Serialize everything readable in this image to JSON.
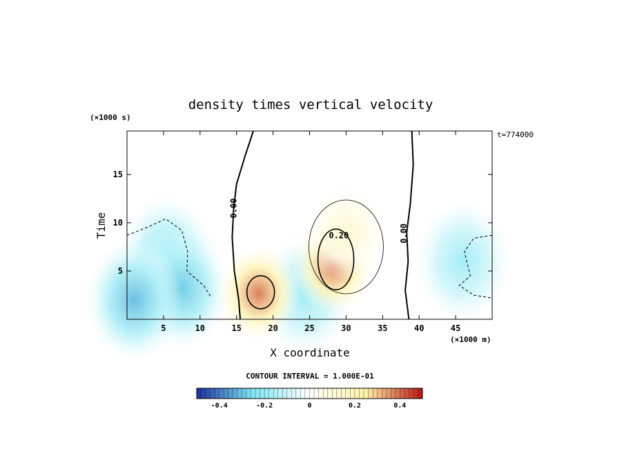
{
  "chart_data": {
    "type": "heatmap",
    "title": "density times vertical velocity",
    "xlabel": "X coordinate",
    "ylabel": "Time",
    "x_unit_label": "(×1000 m)",
    "y_unit_label": "(×1000 s)",
    "time_stamp": "t=774000",
    "xlim": [
      0,
      50
    ],
    "ylim": [
      0,
      19.5
    ],
    "x_ticks": [
      5,
      10,
      15,
      20,
      25,
      30,
      35,
      40,
      45
    ],
    "y_ticks": [
      5,
      10,
      15
    ],
    "contour_interval_label": "CONTOUR INTERVAL = 1.000E-01",
    "colorbar": {
      "range": [
        -0.5,
        0.5
      ],
      "ticks": [
        -0.4,
        -0.2,
        0,
        0.2,
        0.4
      ],
      "tick_labels": [
        "-0.4",
        "-0.2",
        "0",
        "0.2",
        "0.4"
      ]
    },
    "contour_labels": [
      {
        "text": "0.00",
        "x": 15.0,
        "y": 11.5
      },
      {
        "text": "0.20",
        "x": 29.0,
        "y": 8.4
      },
      {
        "text": "0.00",
        "x": 38.3,
        "y": 8.9
      }
    ],
    "field_features": [
      {
        "kind": "negative",
        "x": 5.5,
        "y": 6.5,
        "peak": -0.22
      },
      {
        "kind": "negative",
        "x": 7.5,
        "y": 3.2,
        "peak": -0.28
      },
      {
        "kind": "negative",
        "x": 1.0,
        "y": 2.0,
        "peak": -0.3
      },
      {
        "kind": "negative",
        "x": 24.5,
        "y": 2.5,
        "peak": -0.18
      },
      {
        "kind": "negative",
        "x": 46.0,
        "y": 6.0,
        "peak": -0.18
      },
      {
        "kind": "positive",
        "x": 18.0,
        "y": 2.7,
        "peak": 0.38
      },
      {
        "kind": "positive",
        "x": 28.3,
        "y": 5.5,
        "peak": 0.38
      },
      {
        "kind": "positive",
        "x": 30.0,
        "y": 9.0,
        "peak": 0.12
      }
    ]
  },
  "colors": {
    "negative_strong": "#1c2f9e",
    "negative_light": "#7fe6f2",
    "zero": "#ffffff",
    "positive_light": "#fff2a6",
    "positive_strong": "#b81414"
  }
}
